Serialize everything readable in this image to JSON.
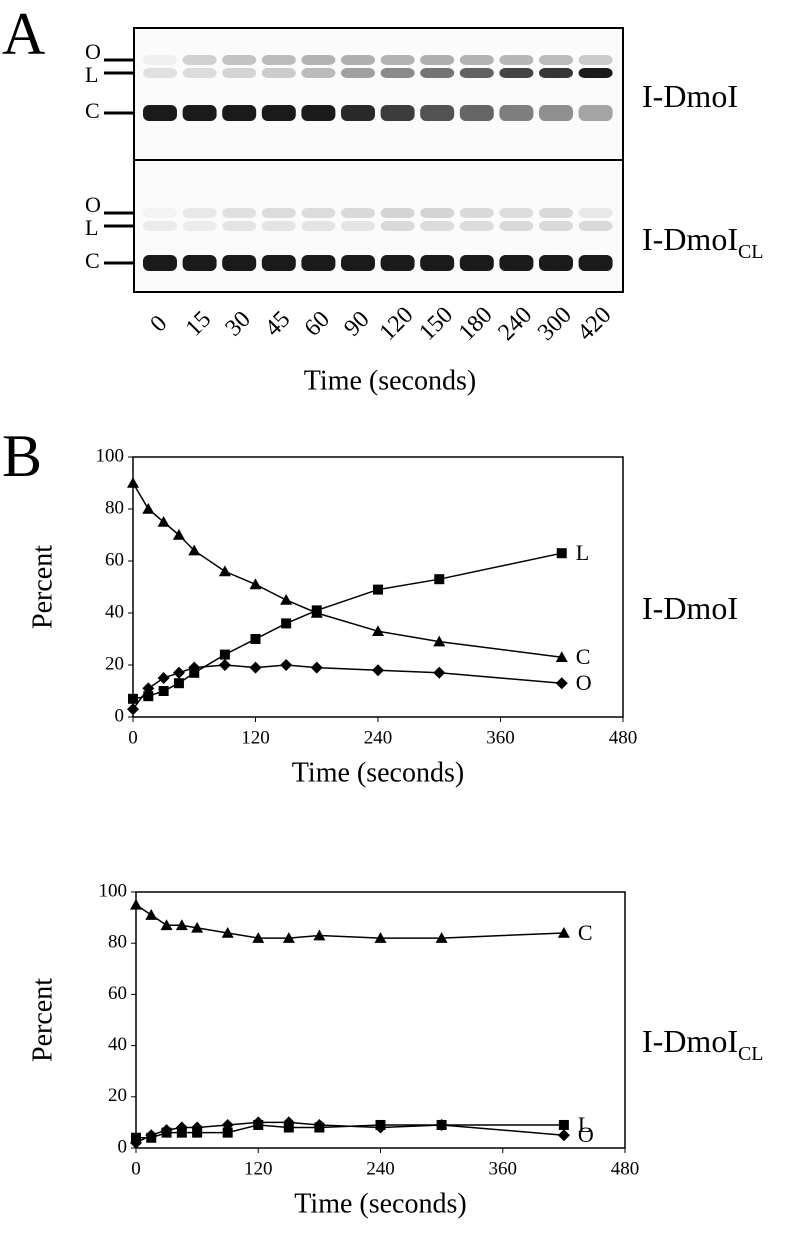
{
  "panel_a": {
    "label": "A",
    "lanes": [
      "0",
      "15",
      "30",
      "45",
      "60",
      "90",
      "120",
      "150",
      "180",
      "240",
      "300",
      "420"
    ],
    "xlabel": "Time (seconds)",
    "band_labels": [
      "O",
      "L",
      "C"
    ]
  },
  "panel_b": {
    "label": "B"
  },
  "chart_data": [
    {
      "type": "line",
      "xlabel": "Time (seconds)",
      "ylabel": "Percent",
      "label": "I-DmoI",
      "x": [
        0,
        15,
        30,
        45,
        60,
        90,
        120,
        150,
        180,
        240,
        300,
        420
      ],
      "series": [
        {
          "name": "L",
          "color": "#000000",
          "marker": "square",
          "values": [
            7,
            8,
            10,
            13,
            17,
            24,
            30,
            36,
            41,
            49,
            53,
            63
          ]
        },
        {
          "name": "C",
          "color": "#000000",
          "marker": "triangle",
          "values": [
            90,
            80,
            75,
            70,
            64,
            56,
            51,
            45,
            40,
            33,
            29,
            23
          ]
        },
        {
          "name": "O",
          "color": "#000000",
          "marker": "diamond",
          "values": [
            3,
            11,
            15,
            17,
            19,
            20,
            19,
            20,
            19,
            18,
            17,
            13
          ]
        }
      ],
      "xlim": [
        0,
        480
      ],
      "xticks": [
        0,
        120,
        240,
        360,
        480
      ],
      "ylim": [
        0,
        100
      ],
      "yticks": [
        0,
        20,
        40,
        60,
        80,
        100
      ]
    },
    {
      "type": "line",
      "xlabel": "Time (seconds)",
      "ylabel": "Percent",
      "label": "I-DmoI",
      "label_sub": "CL",
      "x": [
        0,
        15,
        30,
        45,
        60,
        90,
        120,
        150,
        180,
        240,
        300,
        420
      ],
      "series": [
        {
          "name": "L",
          "color": "#000000",
          "marker": "square",
          "values": [
            4,
            4,
            6,
            6,
            6,
            6,
            9,
            8,
            8,
            9,
            9,
            9
          ]
        },
        {
          "name": "C",
          "color": "#000000",
          "marker": "triangle",
          "values": [
            95,
            91,
            87,
            87,
            86,
            84,
            82,
            82,
            83,
            82,
            82,
            84
          ]
        },
        {
          "name": "O",
          "color": "#000000",
          "marker": "diamond",
          "values": [
            2,
            5,
            7,
            8,
            8,
            9,
            10,
            10,
            9,
            8,
            9,
            5
          ]
        }
      ],
      "xlim": [
        0,
        480
      ],
      "xticks": [
        0,
        120,
        240,
        360,
        480
      ],
      "ylim": [
        0,
        100
      ],
      "yticks": [
        0,
        20,
        40,
        60,
        80,
        100
      ]
    }
  ]
}
